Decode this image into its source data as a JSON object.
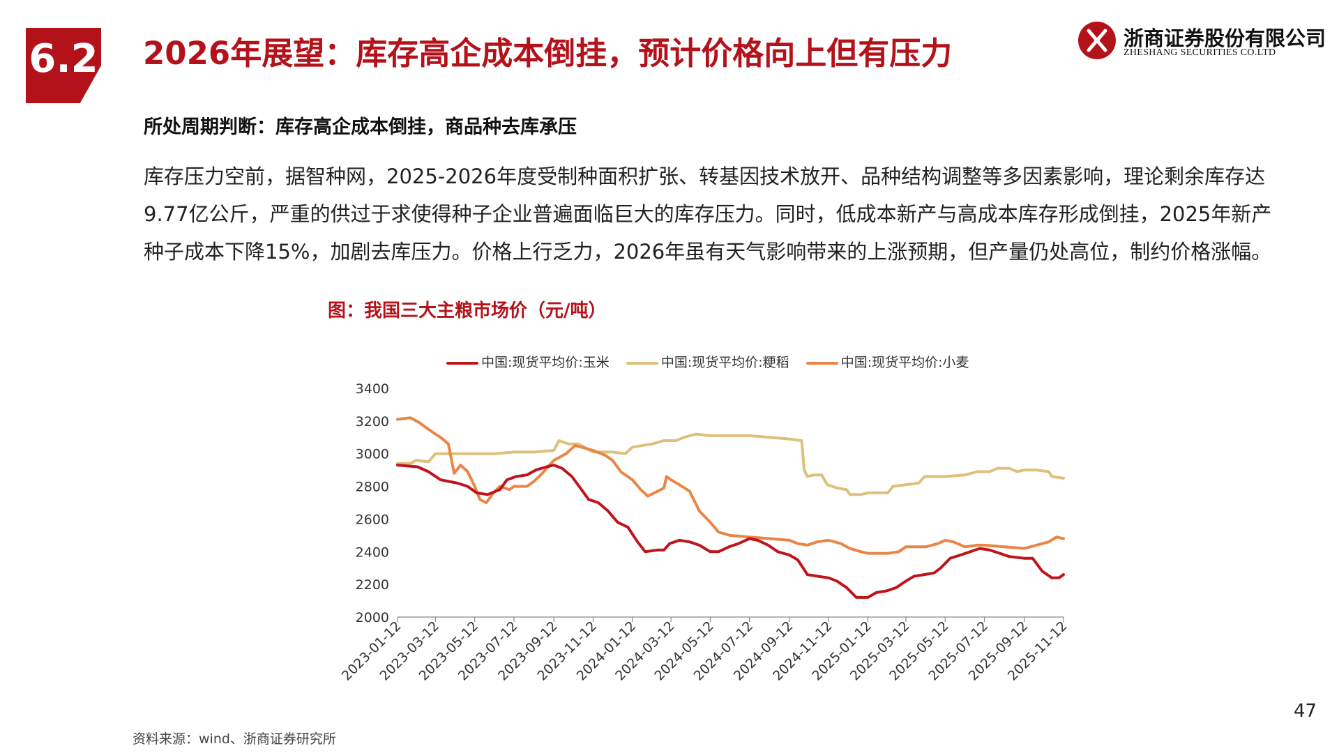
{
  "header": {
    "section_number": "6.2",
    "title": "2026年展望：库存高企成本倒挂，预计价格向上但有压力"
  },
  "logo": {
    "name_cn": "浙商证券股份有限公司",
    "name_en": "ZHESHANG SECURITIES CO.LTD",
    "brand_color": "#b4121b"
  },
  "subtitle": "所处周期判断：库存高企成本倒挂，商品种去库承压",
  "body": "库存压力空前，据智种网，2025-2026年度受制种面积扩张、转基因技术放开、品种结构调整等多因素影响，理论剩余库存达9.77亿公斤，严重的供过于求使得种子企业普遍面临巨大的库存压力。同时，低成本新产与高成本库存形成倒挂，2025年新产种子成本下降15%，加剧去库压力。价格上行乏力，2026年虽有天气影响带来的上涨预期，但产量仍处高位，制约价格涨幅。",
  "figure_title": "图：我国三大主粮市场价（元/吨）",
  "source": "资料来源：wind、浙商证券研究所",
  "page_number": "47",
  "chart_data": {
    "type": "line",
    "title": "",
    "xlabel": "",
    "ylabel": "",
    "ylim": [
      2000,
      3400
    ],
    "yticks": [
      "3400",
      "3200",
      "3000",
      "2800",
      "2600",
      "2400",
      "2200",
      "2000"
    ],
    "xlim": [
      "2023-01-12",
      "2025-11-12"
    ],
    "xticks": [
      "2023-01-12",
      "2023-03-12",
      "2023-05-12",
      "2023-07-12",
      "2023-09-12",
      "2023-11-12",
      "2024-01-12",
      "2024-03-12",
      "2024-05-12",
      "2024-07-12",
      "2024-09-12",
      "2024-11-12",
      "2025-01-12",
      "2025-03-12",
      "2025-05-12",
      "2025-07-12",
      "2025-09-12",
      "2025-11-12"
    ],
    "grid": false,
    "legend_position": "top",
    "series": [
      {
        "name": "中国:现货平均价:玉米",
        "color": "#c0141c",
        "points": [
          [
            "2023-01-12",
            2930
          ],
          [
            "2023-02-12",
            2920
          ],
          [
            "2023-03-01",
            2890
          ],
          [
            "2023-03-20",
            2840
          ],
          [
            "2023-04-15",
            2820
          ],
          [
            "2023-05-01",
            2800
          ],
          [
            "2023-05-15",
            2760
          ],
          [
            "2023-06-01",
            2750
          ],
          [
            "2023-06-20",
            2780
          ],
          [
            "2023-07-01",
            2840
          ],
          [
            "2023-07-15",
            2860
          ],
          [
            "2023-08-01",
            2870
          ],
          [
            "2023-08-15",
            2900
          ],
          [
            "2023-09-01",
            2920
          ],
          [
            "2023-09-12",
            2930
          ],
          [
            "2023-09-25",
            2910
          ],
          [
            "2023-10-10",
            2860
          ],
          [
            "2023-10-25",
            2780
          ],
          [
            "2023-11-05",
            2720
          ],
          [
            "2023-11-20",
            2700
          ],
          [
            "2023-12-05",
            2650
          ],
          [
            "2023-12-20",
            2580
          ],
          [
            "2024-01-05",
            2550
          ],
          [
            "2024-01-20",
            2460
          ],
          [
            "2024-02-01",
            2400
          ],
          [
            "2024-02-20",
            2410
          ],
          [
            "2024-03-01",
            2410
          ],
          [
            "2024-03-10",
            2450
          ],
          [
            "2024-03-25",
            2470
          ],
          [
            "2024-04-10",
            2460
          ],
          [
            "2024-04-25",
            2440
          ],
          [
            "2024-05-12",
            2400
          ],
          [
            "2024-05-25",
            2400
          ],
          [
            "2024-06-10",
            2430
          ],
          [
            "2024-06-25",
            2450
          ],
          [
            "2024-07-12",
            2480
          ],
          [
            "2024-07-25",
            2470
          ],
          [
            "2024-08-10",
            2440
          ],
          [
            "2024-08-25",
            2400
          ],
          [
            "2024-09-12",
            2380
          ],
          [
            "2024-09-25",
            2350
          ],
          [
            "2024-10-10",
            2260
          ],
          [
            "2024-10-25",
            2250
          ],
          [
            "2024-11-12",
            2240
          ],
          [
            "2024-11-25",
            2220
          ],
          [
            "2024-12-10",
            2180
          ],
          [
            "2024-12-25",
            2120
          ],
          [
            "2025-01-12",
            2120
          ],
          [
            "2025-01-25",
            2150
          ],
          [
            "2025-02-10",
            2160
          ],
          [
            "2025-02-25",
            2180
          ],
          [
            "2025-03-12",
            2220
          ],
          [
            "2025-03-25",
            2250
          ],
          [
            "2025-04-10",
            2260
          ],
          [
            "2025-04-25",
            2270
          ],
          [
            "2025-05-05",
            2300
          ],
          [
            "2025-05-20",
            2360
          ],
          [
            "2025-06-05",
            2380
          ],
          [
            "2025-06-20",
            2400
          ],
          [
            "2025-07-05",
            2420
          ],
          [
            "2025-07-20",
            2410
          ],
          [
            "2025-08-05",
            2390
          ],
          [
            "2025-08-20",
            2370
          ],
          [
            "2025-09-12",
            2360
          ],
          [
            "2025-09-25",
            2360
          ],
          [
            "2025-10-10",
            2280
          ],
          [
            "2025-10-25",
            2240
          ],
          [
            "2025-11-05",
            2240
          ],
          [
            "2025-11-12",
            2260
          ]
        ]
      },
      {
        "name": "中国:现货平均价:粳稻",
        "color": "#dfc07a",
        "points": [
          [
            "2023-01-12",
            2940
          ],
          [
            "2023-02-01",
            2940
          ],
          [
            "2023-02-10",
            2960
          ],
          [
            "2023-03-01",
            2950
          ],
          [
            "2023-03-12",
            3000
          ],
          [
            "2023-04-01",
            3000
          ],
          [
            "2023-05-12",
            3000
          ],
          [
            "2023-06-12",
            3000
          ],
          [
            "2023-07-12",
            3010
          ],
          [
            "2023-08-12",
            3010
          ],
          [
            "2023-09-12",
            3020
          ],
          [
            "2023-09-20",
            3080
          ],
          [
            "2023-10-05",
            3060
          ],
          [
            "2023-10-20",
            3060
          ],
          [
            "2023-11-12",
            3010
          ],
          [
            "2023-12-12",
            3010
          ],
          [
            "2024-01-01",
            3000
          ],
          [
            "2024-01-12",
            3040
          ],
          [
            "2024-02-12",
            3060
          ],
          [
            "2024-03-01",
            3080
          ],
          [
            "2024-03-20",
            3080
          ],
          [
            "2024-04-01",
            3100
          ],
          [
            "2024-04-20",
            3120
          ],
          [
            "2024-05-12",
            3110
          ],
          [
            "2024-06-12",
            3110
          ],
          [
            "2024-07-12",
            3110
          ],
          [
            "2024-08-12",
            3100
          ],
          [
            "2024-09-12",
            3090
          ],
          [
            "2024-10-01",
            3080
          ],
          [
            "2024-10-05",
            2900
          ],
          [
            "2024-10-10",
            2860
          ],
          [
            "2024-10-20",
            2870
          ],
          [
            "2024-11-01",
            2870
          ],
          [
            "2024-11-10",
            2810
          ],
          [
            "2024-11-25",
            2790
          ],
          [
            "2024-12-10",
            2780
          ],
          [
            "2024-12-15",
            2750
          ],
          [
            "2025-01-01",
            2750
          ],
          [
            "2025-01-12",
            2760
          ],
          [
            "2025-02-12",
            2760
          ],
          [
            "2025-02-20",
            2800
          ],
          [
            "2025-03-12",
            2810
          ],
          [
            "2025-04-01",
            2820
          ],
          [
            "2025-04-10",
            2860
          ],
          [
            "2025-05-12",
            2860
          ],
          [
            "2025-06-12",
            2870
          ],
          [
            "2025-07-01",
            2890
          ],
          [
            "2025-07-20",
            2890
          ],
          [
            "2025-08-01",
            2910
          ],
          [
            "2025-08-20",
            2910
          ],
          [
            "2025-09-01",
            2890
          ],
          [
            "2025-09-12",
            2900
          ],
          [
            "2025-10-01",
            2900
          ],
          [
            "2025-10-20",
            2890
          ],
          [
            "2025-10-25",
            2860
          ],
          [
            "2025-11-12",
            2850
          ]
        ]
      },
      {
        "name": "中国:现货平均价:小麦",
        "color": "#ea8545",
        "points": [
          [
            "2023-01-12",
            3210
          ],
          [
            "2023-02-01",
            3220
          ],
          [
            "2023-02-15",
            3190
          ],
          [
            "2023-03-01",
            3150
          ],
          [
            "2023-03-12",
            3120
          ],
          [
            "2023-03-20",
            3100
          ],
          [
            "2023-04-01",
            3060
          ],
          [
            "2023-04-10",
            2880
          ],
          [
            "2023-04-20",
            2930
          ],
          [
            "2023-05-01",
            2890
          ],
          [
            "2023-05-12",
            2800
          ],
          [
            "2023-05-20",
            2720
          ],
          [
            "2023-05-30",
            2700
          ],
          [
            "2023-06-10",
            2760
          ],
          [
            "2023-06-20",
            2800
          ],
          [
            "2023-07-05",
            2780
          ],
          [
            "2023-07-12",
            2800
          ],
          [
            "2023-08-01",
            2800
          ],
          [
            "2023-08-12",
            2830
          ],
          [
            "2023-08-25",
            2880
          ],
          [
            "2023-09-12",
            2960
          ],
          [
            "2023-10-01",
            3000
          ],
          [
            "2023-10-15",
            3050
          ],
          [
            "2023-10-25",
            3040
          ],
          [
            "2023-11-12",
            3020
          ],
          [
            "2023-12-01",
            2990
          ],
          [
            "2023-12-12",
            2960
          ],
          [
            "2023-12-25",
            2890
          ],
          [
            "2024-01-12",
            2840
          ],
          [
            "2024-01-25",
            2780
          ],
          [
            "2024-02-05",
            2740
          ],
          [
            "2024-02-20",
            2770
          ],
          [
            "2024-03-01",
            2790
          ],
          [
            "2024-03-05",
            2860
          ],
          [
            "2024-03-12",
            2840
          ],
          [
            "2024-03-25",
            2810
          ],
          [
            "2024-04-10",
            2770
          ],
          [
            "2024-04-25",
            2650
          ],
          [
            "2024-05-12",
            2580
          ],
          [
            "2024-05-25",
            2520
          ],
          [
            "2024-06-12",
            2500
          ],
          [
            "2024-07-12",
            2490
          ],
          [
            "2024-08-12",
            2480
          ],
          [
            "2024-09-12",
            2470
          ],
          [
            "2024-09-25",
            2450
          ],
          [
            "2024-10-10",
            2440
          ],
          [
            "2024-10-25",
            2460
          ],
          [
            "2024-11-12",
            2470
          ],
          [
            "2024-12-01",
            2450
          ],
          [
            "2024-12-15",
            2420
          ],
          [
            "2025-01-01",
            2400
          ],
          [
            "2025-01-12",
            2390
          ],
          [
            "2025-02-12",
            2390
          ],
          [
            "2025-03-01",
            2400
          ],
          [
            "2025-03-12",
            2430
          ],
          [
            "2025-04-12",
            2430
          ],
          [
            "2025-05-01",
            2450
          ],
          [
            "2025-05-12",
            2470
          ],
          [
            "2025-05-25",
            2460
          ],
          [
            "2025-06-12",
            2430
          ],
          [
            "2025-07-01",
            2440
          ],
          [
            "2025-07-12",
            2440
          ],
          [
            "2025-08-12",
            2430
          ],
          [
            "2025-09-12",
            2420
          ],
          [
            "2025-10-01",
            2440
          ],
          [
            "2025-10-20",
            2460
          ],
          [
            "2025-11-01",
            2490
          ],
          [
            "2025-11-12",
            2480
          ]
        ]
      }
    ]
  }
}
